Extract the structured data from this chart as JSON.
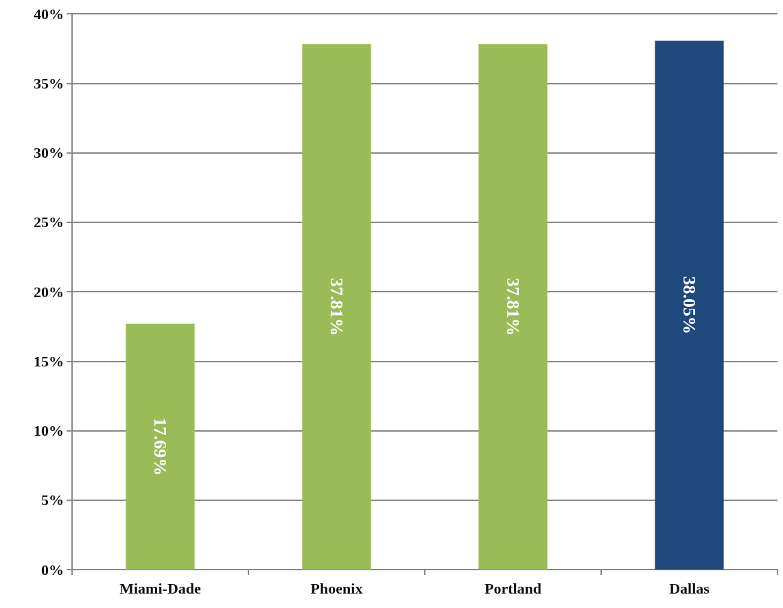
{
  "chart_data": {
    "type": "bar",
    "categories": [
      "Miami-Dade",
      "Phoenix",
      "Portland",
      "Dallas"
    ],
    "values": [
      17.69,
      37.81,
      37.81,
      38.05
    ],
    "value_labels": [
      "17.69%",
      "37.81%",
      "37.81%",
      "38.05%"
    ],
    "colors": [
      "#9bbb59",
      "#9bbb59",
      "#9bbb59",
      "#1f497d"
    ],
    "ylim": [
      0,
      40
    ],
    "yticks": [
      {
        "value": 0,
        "label": "0%"
      },
      {
        "value": 5,
        "label": "5%"
      },
      {
        "value": 10,
        "label": "10%"
      },
      {
        "value": 15,
        "label": "15%"
      },
      {
        "value": 20,
        "label": "20%"
      },
      {
        "value": 25,
        "label": "25%"
      },
      {
        "value": 30,
        "label": "30%"
      },
      {
        "value": 35,
        "label": "35%"
      },
      {
        "value": 40,
        "label": "40%"
      }
    ],
    "grid": "y"
  }
}
